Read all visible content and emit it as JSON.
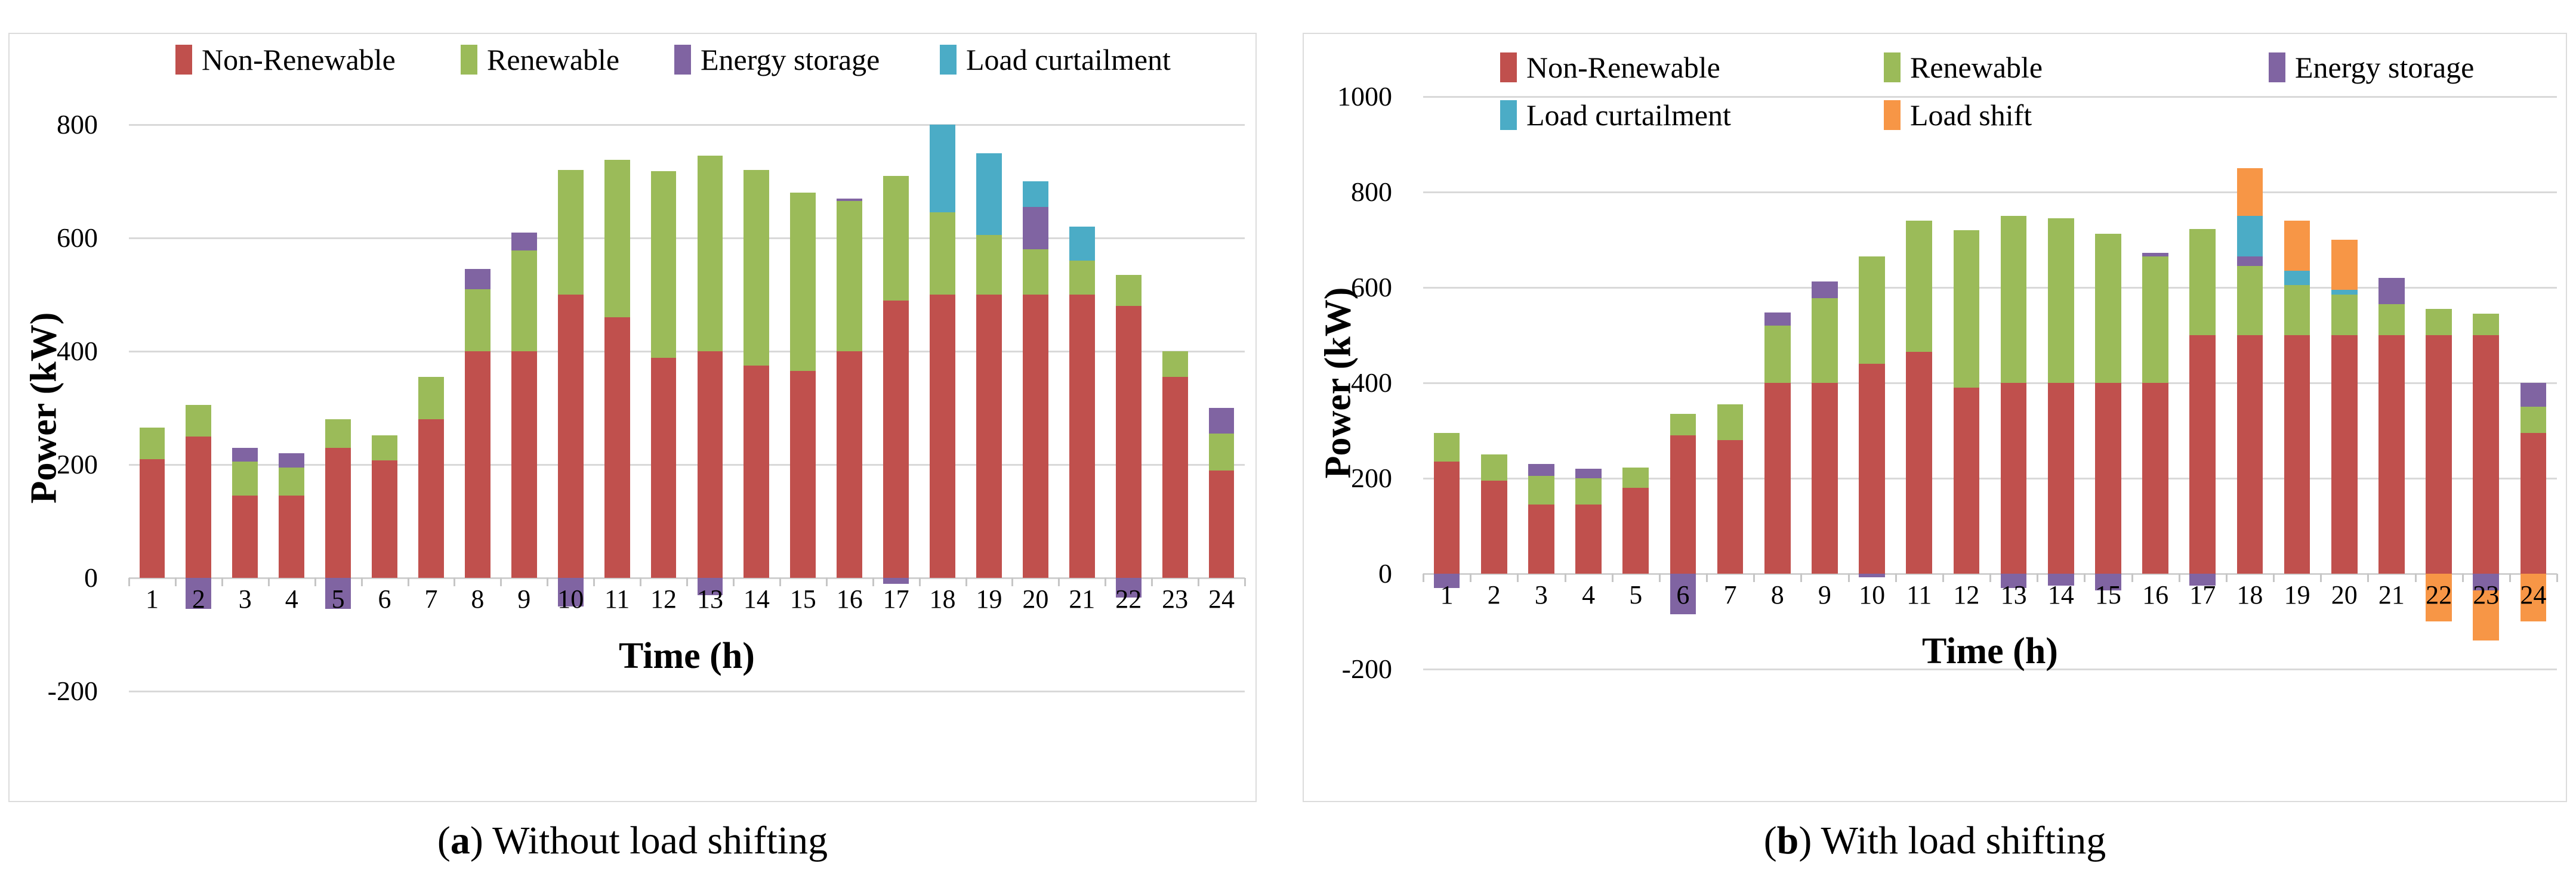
{
  "figure": {
    "panels": [
      {
        "caption_prefix": "(",
        "caption_letter": "a",
        "caption_suffix": ") Without load shifting"
      },
      {
        "caption_prefix": "(",
        "caption_letter": "b",
        "caption_suffix": ") With load shifting"
      }
    ]
  },
  "colors": {
    "non_renewable": "#C0504D",
    "renewable": "#9BBB59",
    "energy_storage": "#8064A2",
    "load_curtailment": "#4BACC6",
    "load_shift": "#F79646",
    "gridline": "#D9D9D9"
  },
  "chart_data": [
    {
      "type": "bar",
      "stacked": true,
      "title": "(a) Without load shifting",
      "xlabel": "Time (h)",
      "ylabel": "Power (kW)",
      "x": [
        1,
        2,
        3,
        4,
        5,
        6,
        7,
        8,
        9,
        10,
        11,
        12,
        13,
        14,
        15,
        16,
        17,
        18,
        19,
        20,
        21,
        22,
        23,
        24
      ],
      "ylim": [
        -200,
        800
      ],
      "y_ticks": [
        800,
        600,
        400,
        200,
        0,
        -200
      ],
      "grid": true,
      "legend_position": "top",
      "series": [
        {
          "name": "Non-Renewable",
          "color": "#C0504D",
          "values": [
            210,
            250,
            145,
            145,
            230,
            207,
            280,
            400,
            400,
            500,
            460,
            388,
            400,
            375,
            365,
            400,
            490,
            500,
            500,
            500,
            500,
            480,
            355,
            190
          ]
        },
        {
          "name": "Renewable",
          "color": "#9BBB59",
          "values": [
            55,
            55,
            60,
            50,
            50,
            45,
            75,
            110,
            178,
            220,
            278,
            330,
            345,
            345,
            315,
            265,
            220,
            145,
            105,
            80,
            60,
            55,
            45,
            65
          ]
        },
        {
          "name": "Energy storage",
          "color": "#8064A2",
          "values": [
            0,
            -55,
            25,
            25,
            -55,
            0,
            0,
            35,
            32,
            -50,
            0,
            0,
            -30,
            0,
            0,
            5,
            -10,
            0,
            0,
            75,
            0,
            -35,
            0,
            45
          ]
        },
        {
          "name": "Load curtailment",
          "color": "#4BACC6",
          "values": [
            0,
            0,
            0,
            0,
            0,
            0,
            0,
            0,
            0,
            0,
            0,
            0,
            0,
            0,
            0,
            0,
            0,
            155,
            145,
            45,
            60,
            0,
            0,
            0
          ]
        }
      ]
    },
    {
      "type": "bar",
      "stacked": true,
      "title": "(b) With load shifting",
      "xlabel": "Time (h)",
      "ylabel": "Power (kW)",
      "x": [
        1,
        2,
        3,
        4,
        5,
        6,
        7,
        8,
        9,
        10,
        11,
        12,
        13,
        14,
        15,
        16,
        17,
        18,
        19,
        20,
        21,
        22,
        23,
        24
      ],
      "ylim": [
        -200,
        1000
      ],
      "y_ticks": [
        1000,
        800,
        600,
        400,
        200,
        0,
        -200
      ],
      "grid": true,
      "legend_position": "top",
      "series": [
        {
          "name": "Non-Renewable",
          "color": "#C0504D",
          "values": [
            235,
            195,
            145,
            145,
            180,
            290,
            280,
            400,
            400,
            440,
            465,
            390,
            400,
            400,
            400,
            400,
            500,
            500,
            500,
            500,
            500,
            500,
            500,
            295
          ]
        },
        {
          "name": "Renewable",
          "color": "#9BBB59",
          "values": [
            60,
            55,
            60,
            55,
            42,
            45,
            75,
            120,
            178,
            225,
            275,
            330,
            350,
            345,
            313,
            265,
            222,
            145,
            105,
            85,
            65,
            55,
            45,
            55
          ]
        },
        {
          "name": "Energy storage",
          "color": "#8064A2",
          "values": [
            -30,
            0,
            25,
            20,
            0,
            -85,
            0,
            28,
            34,
            -8,
            0,
            0,
            -30,
            -25,
            -35,
            7,
            -25,
            20,
            0,
            0,
            55,
            0,
            -35,
            50
          ]
        },
        {
          "name": "Load curtailment",
          "color": "#4BACC6",
          "values": [
            0,
            0,
            0,
            0,
            0,
            0,
            0,
            0,
            0,
            0,
            0,
            0,
            0,
            0,
            0,
            0,
            0,
            85,
            30,
            10,
            0,
            0,
            0,
            0
          ]
        },
        {
          "name": "Load shift",
          "color": "#F79646",
          "values": [
            0,
            0,
            0,
            0,
            0,
            0,
            0,
            0,
            0,
            0,
            0,
            0,
            0,
            0,
            0,
            0,
            0,
            100,
            105,
            105,
            0,
            -100,
            -105,
            -100
          ]
        }
      ]
    }
  ]
}
